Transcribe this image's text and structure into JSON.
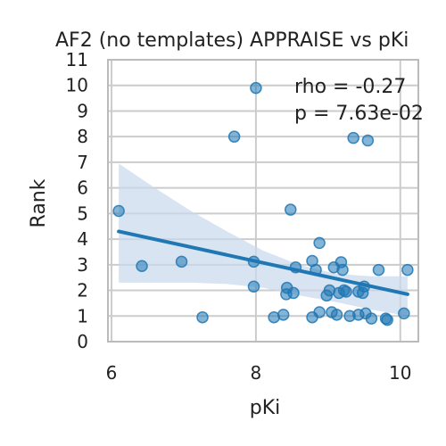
{
  "chart_data": {
    "type": "scatter",
    "title": "AF2 (no templates) APPRAISE vs pKi",
    "xlabel": "pKi",
    "ylabel": "Rank",
    "xlim": [
      5.95,
      10.25
    ],
    "ylim": [
      0,
      11
    ],
    "x_ticks": [
      "6",
      "8",
      "10"
    ],
    "y_ticks": [
      "0",
      "1",
      "2",
      "3",
      "4",
      "5",
      "6",
      "7",
      "8",
      "9",
      "10",
      "11"
    ],
    "grid": true,
    "annotations": [
      "rho = -0.27",
      "p = 7.63e-02"
    ],
    "colors": {
      "points": "#1f77b4",
      "regression_line": "#1f77b4",
      "confidence_band": "#c9d9ec",
      "grid": "#cccccc",
      "frame": "#bbbbbb"
    },
    "points": [
      {
        "x": 6.1,
        "y": 5.1
      },
      {
        "x": 6.42,
        "y": 2.95
      },
      {
        "x": 6.97,
        "y": 3.12
      },
      {
        "x": 7.26,
        "y": 0.95
      },
      {
        "x": 7.7,
        "y": 8.0
      },
      {
        "x": 7.97,
        "y": 2.15
      },
      {
        "x": 7.97,
        "y": 3.12
      },
      {
        "x": 8.0,
        "y": 9.9
      },
      {
        "x": 8.25,
        "y": 0.95
      },
      {
        "x": 8.38,
        "y": 1.05
      },
      {
        "x": 8.42,
        "y": 1.85
      },
      {
        "x": 8.43,
        "y": 2.1
      },
      {
        "x": 8.48,
        "y": 5.15
      },
      {
        "x": 8.52,
        "y": 1.9
      },
      {
        "x": 8.55,
        "y": 2.9
      },
      {
        "x": 8.78,
        "y": 3.15
      },
      {
        "x": 8.78,
        "y": 0.95
      },
      {
        "x": 8.83,
        "y": 2.8
      },
      {
        "x": 8.88,
        "y": 3.85
      },
      {
        "x": 8.88,
        "y": 1.15
      },
      {
        "x": 8.98,
        "y": 1.8
      },
      {
        "x": 9.02,
        "y": 2.0
      },
      {
        "x": 9.05,
        "y": 1.15
      },
      {
        "x": 9.08,
        "y": 2.9
      },
      {
        "x": 9.12,
        "y": 1.05
      },
      {
        "x": 9.15,
        "y": 1.9
      },
      {
        "x": 9.18,
        "y": 3.1
      },
      {
        "x": 9.2,
        "y": 2.8
      },
      {
        "x": 9.22,
        "y": 2.0
      },
      {
        "x": 9.25,
        "y": 1.95
      },
      {
        "x": 9.3,
        "y": 1.0
      },
      {
        "x": 9.35,
        "y": 7.95
      },
      {
        "x": 9.42,
        "y": 1.95
      },
      {
        "x": 9.42,
        "y": 1.05
      },
      {
        "x": 9.48,
        "y": 1.9
      },
      {
        "x": 9.5,
        "y": 2.15
      },
      {
        "x": 9.52,
        "y": 1.1
      },
      {
        "x": 9.55,
        "y": 7.85
      },
      {
        "x": 9.6,
        "y": 0.9
      },
      {
        "x": 9.7,
        "y": 2.8
      },
      {
        "x": 9.8,
        "y": 0.9
      },
      {
        "x": 9.82,
        "y": 0.85
      },
      {
        "x": 10.05,
        "y": 1.1
      },
      {
        "x": 10.1,
        "y": 2.8
      }
    ],
    "regression": {
      "x": [
        6.1,
        10.1
      ],
      "y": [
        4.3,
        1.85
      ]
    },
    "confidence_band": {
      "x": [
        6.1,
        6.6,
        7.1,
        7.6,
        8.1,
        8.6,
        9.1,
        9.6,
        10.1
      ],
      "upper": [
        6.95,
        6.0,
        5.1,
        4.3,
        3.55,
        3.0,
        2.65,
        2.55,
        2.55
      ],
      "lower": [
        2.3,
        2.3,
        2.3,
        2.25,
        2.1,
        1.8,
        1.55,
        1.25,
        1.0
      ]
    }
  }
}
